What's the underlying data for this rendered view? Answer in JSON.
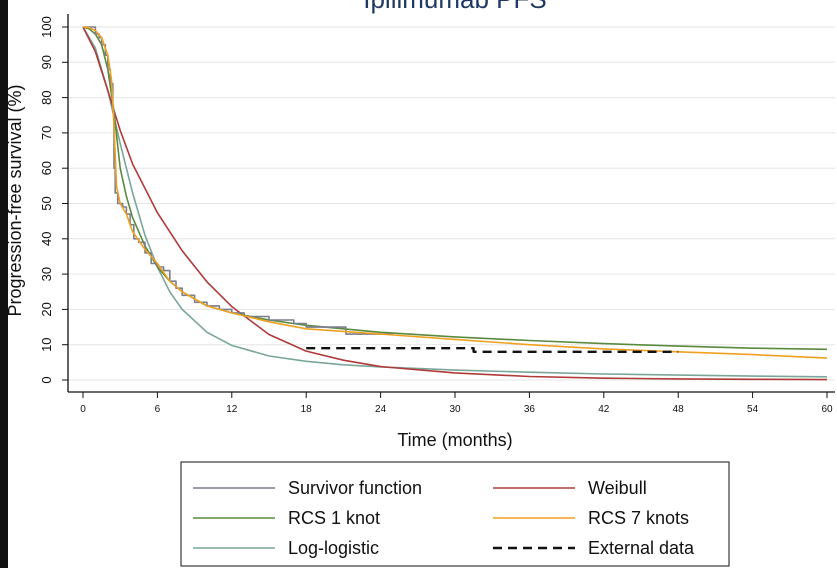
{
  "chart_data": {
    "type": "line",
    "title": "Ipilimumab PFS",
    "xlabel": "Time (months)",
    "ylabel": "Progression-free survival (%)",
    "xlim": [
      0,
      60
    ],
    "ylim": [
      0,
      100
    ],
    "x_ticks": [
      "0",
      "6",
      "12",
      "18",
      "24",
      "30",
      "36",
      "42",
      "48",
      "54",
      "60"
    ],
    "y_ticks": [
      "0",
      "10",
      "20",
      "30",
      "40",
      "50",
      "60",
      "70",
      "80",
      "90",
      "100"
    ],
    "grid": "horizontal",
    "legend_position": "bottom",
    "series": [
      {
        "name": "Survivor function",
        "color": "#7a7f8c",
        "dash": "solid",
        "step": true,
        "points": [
          [
            0,
            100
          ],
          [
            0.8,
            100
          ],
          [
            1.0,
            98
          ],
          [
            1.3,
            97
          ],
          [
            1.5,
            95
          ],
          [
            1.8,
            92
          ],
          [
            2.0,
            88
          ],
          [
            2.2,
            84
          ],
          [
            2.4,
            76
          ],
          [
            2.5,
            60
          ],
          [
            2.6,
            53
          ],
          [
            2.8,
            50
          ],
          [
            3.2,
            49
          ],
          [
            3.5,
            47
          ],
          [
            3.8,
            44
          ],
          [
            4.1,
            40
          ],
          [
            4.5,
            39
          ],
          [
            5.0,
            36
          ],
          [
            5.5,
            33
          ],
          [
            6.0,
            32
          ],
          [
            6.5,
            31
          ],
          [
            7.0,
            28
          ],
          [
            7.5,
            26
          ],
          [
            8.0,
            24
          ],
          [
            9.0,
            22
          ],
          [
            10.0,
            21
          ],
          [
            11.0,
            20
          ],
          [
            12.0,
            19
          ],
          [
            13.0,
            18
          ],
          [
            15.0,
            17
          ],
          [
            16.0,
            17
          ],
          [
            17.0,
            16
          ],
          [
            18.0,
            15
          ],
          [
            21.0,
            15
          ],
          [
            21.2,
            13
          ],
          [
            25.0,
            13
          ]
        ]
      },
      {
        "name": "Weibull",
        "color": "#b03a3a",
        "dash": "solid",
        "points": [
          [
            0,
            100
          ],
          [
            1,
            93
          ],
          [
            2,
            82
          ],
          [
            3,
            70.7
          ],
          [
            4,
            61.2
          ],
          [
            6,
            47.4
          ],
          [
            8,
            36.6
          ],
          [
            10,
            27.8
          ],
          [
            12,
            20.8
          ],
          [
            15,
            12.9
          ],
          [
            18,
            8.2
          ],
          [
            21,
            5.6
          ],
          [
            24,
            3.8
          ],
          [
            30,
            2.0
          ],
          [
            36,
            1.0
          ],
          [
            42,
            0.5
          ],
          [
            48,
            0.3
          ],
          [
            54,
            0.2
          ],
          [
            60,
            0.1
          ]
        ]
      },
      {
        "name": "RCS 1 knot",
        "color": "#5a8a3c",
        "dash": "solid",
        "points": [
          [
            0,
            100
          ],
          [
            0.5,
            99.5
          ],
          [
            1,
            98
          ],
          [
            1.5,
            95
          ],
          [
            2,
            88
          ],
          [
            2.5,
            76
          ],
          [
            3,
            60
          ],
          [
            3.5,
            52
          ],
          [
            4,
            46
          ],
          [
            5,
            38
          ],
          [
            6,
            32
          ],
          [
            7,
            28
          ],
          [
            8,
            25
          ],
          [
            10,
            21
          ],
          [
            12,
            19
          ],
          [
            15,
            17
          ],
          [
            18,
            15.5
          ],
          [
            24,
            13.5
          ],
          [
            30,
            12.2
          ],
          [
            36,
            11.2
          ],
          [
            42,
            10.3
          ],
          [
            48,
            9.6
          ],
          [
            54,
            9.0
          ],
          [
            60,
            8.7
          ]
        ]
      },
      {
        "name": "RCS 7 knots",
        "color": "#f0a020",
        "dash": "solid",
        "points": [
          [
            0,
            100
          ],
          [
            0.5,
            99.8
          ],
          [
            1,
            99
          ],
          [
            1.5,
            97
          ],
          [
            2,
            92
          ],
          [
            2.3,
            85
          ],
          [
            2.5,
            72
          ],
          [
            2.7,
            55
          ],
          [
            3,
            50
          ],
          [
            3.5,
            47
          ],
          [
            4,
            42
          ],
          [
            5,
            37
          ],
          [
            6,
            33
          ],
          [
            7,
            28
          ],
          [
            8,
            25
          ],
          [
            10,
            21
          ],
          [
            12,
            19
          ],
          [
            15,
            16.5
          ],
          [
            18,
            14.5
          ],
          [
            24,
            13
          ],
          [
            30,
            11.5
          ],
          [
            36,
            10
          ],
          [
            42,
            8.8
          ],
          [
            48,
            8
          ],
          [
            54,
            7.2
          ],
          [
            60,
            6.2
          ]
        ]
      },
      {
        "name": "Log-logistic",
        "color": "#7aa69a",
        "dash": "solid",
        "points": [
          [
            0,
            100
          ],
          [
            1,
            94
          ],
          [
            2,
            82
          ],
          [
            3,
            67
          ],
          [
            4,
            53
          ],
          [
            5,
            41
          ],
          [
            6,
            32
          ],
          [
            7,
            25
          ],
          [
            8,
            20
          ],
          [
            10,
            13.5
          ],
          [
            12,
            9.8
          ],
          [
            15,
            6.8
          ],
          [
            18,
            5.3
          ],
          [
            21,
            4.3
          ],
          [
            24,
            3.7
          ],
          [
            30,
            2.8
          ],
          [
            36,
            2.2
          ],
          [
            42,
            1.7
          ],
          [
            48,
            1.4
          ],
          [
            54,
            1.1
          ],
          [
            60,
            0.9
          ]
        ]
      },
      {
        "name": "External data",
        "color": "#111111",
        "dash": "dashed",
        "step": true,
        "points": [
          [
            18,
            9
          ],
          [
            31,
            9
          ],
          [
            31.5,
            8
          ],
          [
            48,
            8
          ]
        ]
      }
    ]
  }
}
